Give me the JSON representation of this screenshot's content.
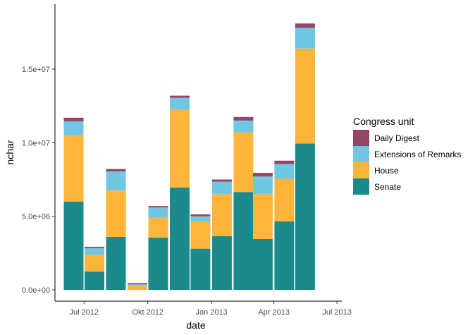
{
  "chart_data": {
    "type": "bar",
    "stacked": true,
    "xlabel": "date",
    "ylabel": "nchar",
    "x_tick_labels": [
      "Jul 2012",
      "Okt 2012",
      "Jan 2013",
      "Apr 2013",
      "Jul 2013"
    ],
    "y_tick_labels": [
      "0.0e+00",
      "5.0e+06",
      "1.0e+07",
      "1.5e+07"
    ],
    "ylim": [
      0,
      18500000
    ],
    "xlim": [
      "2012-05-20",
      "2013-07-08"
    ],
    "categories": [
      "2012-06-01",
      "2012-07-01",
      "2012-08-01",
      "2012-09-01",
      "2012-10-01",
      "2012-11-01",
      "2012-12-01",
      "2013-01-01",
      "2013-02-01",
      "2013-03-01",
      "2013-04-01",
      "2013-05-01"
    ],
    "series": [
      {
        "name": "Senate",
        "color": "#1b8a8c",
        "values": [
          6000000,
          1250000,
          3600000,
          0,
          3550000,
          6950000,
          2800000,
          3650000,
          6650000,
          3450000,
          4650000,
          9950000
        ]
      },
      {
        "name": "House",
        "color": "#ffb43a",
        "values": [
          4500000,
          1150000,
          3150000,
          300000,
          1350000,
          5300000,
          1850000,
          2850000,
          4050000,
          3050000,
          2900000,
          6450000
        ]
      },
      {
        "name": "Extensions of Remarks",
        "color": "#70c7e3",
        "values": [
          950000,
          450000,
          1300000,
          80000,
          700000,
          800000,
          350000,
          850000,
          800000,
          1200000,
          1000000,
          1400000
        ]
      },
      {
        "name": "Daily Digest",
        "color": "#934665",
        "values": [
          250000,
          80000,
          160000,
          80000,
          100000,
          150000,
          130000,
          150000,
          250000,
          250000,
          230000,
          300000
        ]
      }
    ],
    "legend": {
      "title": "Congress unit",
      "position": "right",
      "entries": [
        "Daily Digest",
        "Extensions of Remarks",
        "House",
        "Senate"
      ]
    },
    "grid": false
  }
}
